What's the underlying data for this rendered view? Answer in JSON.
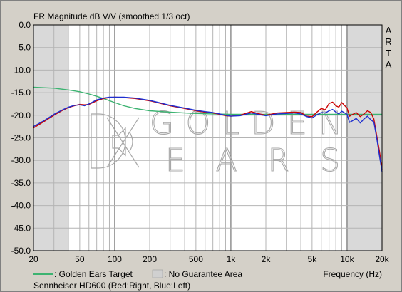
{
  "chart_data": {
    "type": "line",
    "title": "FR Magnitude dB V/V (smoothed 1/3 oct)",
    "software_label": [
      "A",
      "R",
      "T",
      "A"
    ],
    "x_scale": "log",
    "xlim": [
      20,
      20000
    ],
    "ylim": [
      -50,
      0
    ],
    "x_ticks": [
      {
        "value": 20,
        "label": "20"
      },
      {
        "value": 50,
        "label": "50"
      },
      {
        "value": 100,
        "label": "100"
      },
      {
        "value": 200,
        "label": "200"
      },
      {
        "value": 500,
        "label": "500"
      },
      {
        "value": 1000,
        "label": "1k"
      },
      {
        "value": 2000,
        "label": "2k"
      },
      {
        "value": 5000,
        "label": "5k"
      },
      {
        "value": 10000,
        "label": "10k"
      },
      {
        "value": 20000,
        "label": "20k"
      }
    ],
    "y_ticks": [
      {
        "value": 0,
        "label": "0.0"
      },
      {
        "value": -5,
        "label": "-5.0"
      },
      {
        "value": -10,
        "label": "-10.0"
      },
      {
        "value": -15,
        "label": "-15.0"
      },
      {
        "value": -20,
        "label": "-20.0"
      },
      {
        "value": -25,
        "label": "-25.0"
      },
      {
        "value": -30,
        "label": "-30.0"
      },
      {
        "value": -35,
        "label": "-35.0"
      },
      {
        "value": -40,
        "label": "-40.0"
      },
      {
        "value": -45,
        "label": "-45.0"
      },
      {
        "value": -50,
        "label": "-50.0"
      }
    ],
    "grid": true,
    "xlabel": "Frequency (Hz)",
    "shaded_regions": [
      {
        "from": 20,
        "to": 40
      },
      {
        "from": 10000,
        "to": 20000
      }
    ],
    "legend": [
      {
        "text": ": Golden Ears Target",
        "color": "#3cb371",
        "kind": "line"
      },
      {
        "text": ": No Guarantee Area",
        "color": "#d0d0d0",
        "kind": "box"
      }
    ],
    "caption": "Sennheiser HD600 (Red:Right, Blue:Left)",
    "watermark": {
      "top": "GOLDEN",
      "bottom": "EARS"
    },
    "series": [
      {
        "name": "Golden Ears Target",
        "color": "#3cb371",
        "x": [
          20,
          30,
          40,
          50,
          60,
          70,
          80,
          100,
          120,
          150,
          200,
          300,
          400,
          500,
          700,
          1000,
          1500,
          2000,
          3000,
          5000,
          7000,
          10000,
          15000,
          20000
        ],
        "y": [
          -13.8,
          -14.0,
          -14.4,
          -14.8,
          -15.3,
          -15.8,
          -16.3,
          -17.2,
          -17.9,
          -18.5,
          -19.0,
          -19.3,
          -19.5,
          -19.6,
          -19.7,
          -19.8,
          -19.8,
          -19.8,
          -19.8,
          -19.8,
          -19.8,
          -19.8,
          -19.8,
          -19.8
        ]
      },
      {
        "name": "Right",
        "color": "#cc0000",
        "x": [
          20,
          25,
          30,
          35,
          40,
          45,
          50,
          55,
          60,
          70,
          80,
          90,
          100,
          120,
          150,
          200,
          250,
          300,
          400,
          500,
          600,
          700,
          800,
          900,
          1000,
          1200,
          1500,
          1700,
          2000,
          2500,
          3000,
          3500,
          4000,
          4500,
          5000,
          5500,
          6000,
          6500,
          7000,
          7500,
          8000,
          8500,
          9000,
          10000,
          10500,
          11000,
          12000,
          13000,
          14000,
          15000,
          16000,
          17000,
          18000,
          19000,
          20000
        ],
        "y": [
          -22.8,
          -21.3,
          -20.0,
          -19.0,
          -18.3,
          -17.9,
          -17.6,
          -17.7,
          -17.6,
          -16.8,
          -16.3,
          -16.1,
          -16.0,
          -16.1,
          -16.3,
          -16.8,
          -17.4,
          -17.9,
          -18.5,
          -19.0,
          -19.3,
          -19.5,
          -19.8,
          -20.1,
          -20.2,
          -20.0,
          -19.2,
          -19.6,
          -20.0,
          -19.5,
          -19.4,
          -19.3,
          -19.4,
          -20.2,
          -20.3,
          -19.3,
          -18.5,
          -18.8,
          -17.4,
          -17.1,
          -17.9,
          -18.2,
          -17.2,
          -18.4,
          -20.2,
          -19.9,
          -19.4,
          -20.3,
          -19.7,
          -19.0,
          -19.4,
          -20.8,
          -24.5,
          -28.0,
          -32.0
        ]
      },
      {
        "name": "Left",
        "color": "#1f2fcf",
        "x": [
          20,
          25,
          30,
          35,
          40,
          45,
          50,
          55,
          60,
          70,
          80,
          90,
          100,
          120,
          150,
          200,
          250,
          300,
          400,
          500,
          600,
          700,
          800,
          900,
          1000,
          1200,
          1500,
          1700,
          2000,
          2500,
          3000,
          3500,
          4000,
          4500,
          5000,
          5500,
          6000,
          6500,
          7000,
          7500,
          8000,
          8500,
          9000,
          10000,
          10500,
          11000,
          12000,
          13000,
          14000,
          15000,
          16000,
          17000,
          18000,
          19000,
          20000
        ],
        "y": [
          -22.5,
          -21.1,
          -19.8,
          -18.9,
          -18.2,
          -17.8,
          -17.7,
          -17.9,
          -17.5,
          -16.6,
          -16.2,
          -16.0,
          -16.0,
          -16.0,
          -16.2,
          -16.7,
          -17.3,
          -17.8,
          -18.4,
          -18.9,
          -19.2,
          -19.4,
          -19.7,
          -20.0,
          -20.2,
          -20.1,
          -19.5,
          -19.8,
          -20.1,
          -19.7,
          -19.6,
          -19.5,
          -19.7,
          -20.3,
          -20.6,
          -19.9,
          -19.4,
          -19.5,
          -19.0,
          -18.7,
          -19.3,
          -19.7,
          -19.1,
          -19.8,
          -21.6,
          -21.3,
          -20.7,
          -21.7,
          -20.8,
          -20.2,
          -21.0,
          -21.5,
          -25.0,
          -29.0,
          -32.5
        ]
      }
    ]
  }
}
